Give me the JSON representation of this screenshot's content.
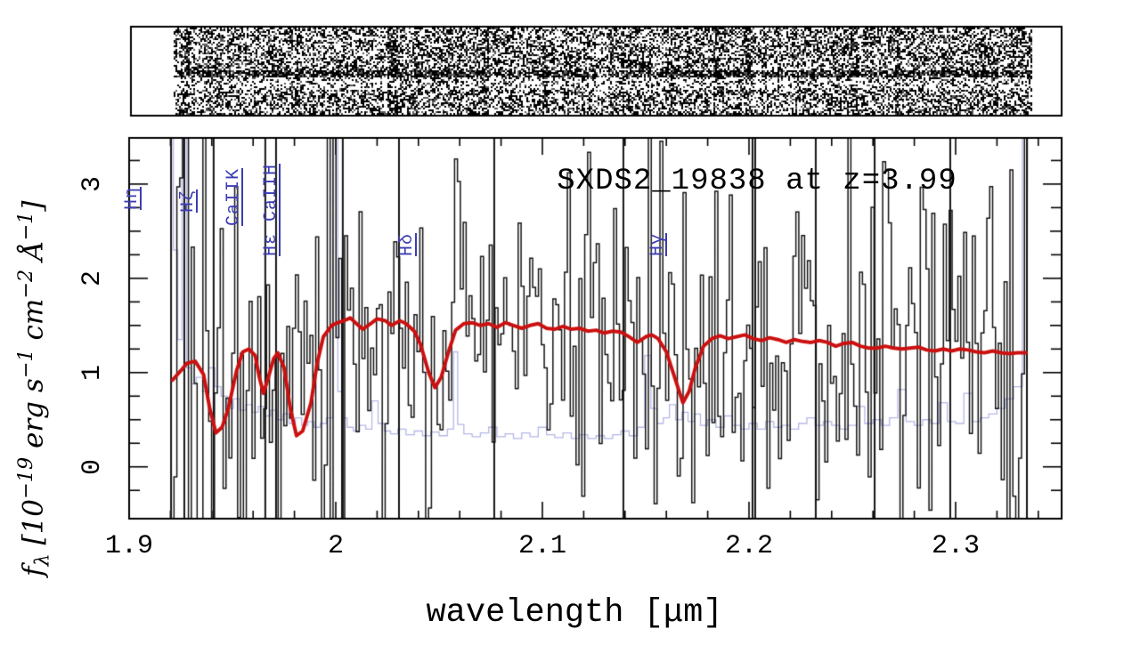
{
  "figure": {
    "title": "SXDS2_19838 at z=3.99",
    "object_name": "SXDS2_19838",
    "redshift": "3.99"
  },
  "colors": {
    "background": "#ffffff",
    "frame": "#000000",
    "observed_spectrum": "#141414",
    "model_curve": "#cc1010",
    "noise_spectrum": "#b4b8e8",
    "line_labels": "#3c3cb4"
  },
  "axes": {
    "xlabel": "wavelength [μm]",
    "ylabel": {
      "f": "f",
      "sub": "λ",
      "open": " [10",
      "e1": "−19",
      "erg": " erg s",
      "e2": "−1",
      "cm": " cm",
      "e3": "−2",
      "ang": " Å",
      "e4": "−1",
      "close": "]"
    },
    "x_tick_labels": [
      "1.9",
      "2",
      "2.1",
      "2.2",
      "2.3"
    ],
    "y_tick_labels": [
      "0",
      "1",
      "2",
      "3"
    ]
  },
  "strip": {
    "name": "2d-spectrum-cutout",
    "has_dark_trace_band": true
  },
  "chart_data": {
    "type": "line",
    "title": "SXDS2_19838 at z=3.99",
    "xlabel": "wavelength [μm]",
    "ylabel": "f_lambda [10^-19 erg s^-1 cm^-2 A^-1]",
    "xlim": [
      1.9,
      2.3513
    ],
    "ylim": [
      -0.55,
      3.49
    ],
    "grid": false,
    "x_major_ticks": [
      1.9,
      2.0,
      2.1,
      2.2,
      2.3
    ],
    "x_minor_step": 0.02,
    "y_major_ticks": [
      0,
      1,
      2,
      3
    ],
    "y_minor_step": 0.25,
    "data_range_um": [
      1.9203,
      2.3345
    ],
    "spectral_lines": [
      {
        "label": "Hη",
        "wavelength_um": 1.914
      },
      {
        "label": "Hζ",
        "wavelength_um": 1.941
      },
      {
        "label": "CaIIK",
        "wavelength_um": 1.963
      },
      {
        "label": "Hε CaIIH",
        "wavelength_um": 1.981
      },
      {
        "label": "Hδ",
        "wavelength_um": 2.047
      },
      {
        "label": "Hγ",
        "wavelength_um": 2.168
      }
    ],
    "bad_pixel_columns_um": [
      1.9203,
      1.9267,
      1.9409,
      1.9659,
      1.9711,
      2.0034,
      2.0306,
      2.0767,
      2.1392,
      2.2017,
      2.203,
      2.2323,
      2.2608,
      2.2974,
      2.3345
    ],
    "series": [
      {
        "name": "observed spectrum",
        "style": "histogram",
        "color": "#141414",
        "generated": {
          "seed": 20,
          "bin_um": 0.0014,
          "sigma_base": 0.42,
          "sigma_noise_scale": 1.05,
          "left_edge_boost": 1.6,
          "left_edge_limit_um": 1.945
        }
      },
      {
        "name": "best-fit model",
        "style": "smooth-line",
        "color": "#cc1010",
        "points": [
          [
            1.921,
            0.92
          ],
          [
            1.925,
            1.02
          ],
          [
            1.928,
            1.1
          ],
          [
            1.932,
            1.12
          ],
          [
            1.936,
            0.98
          ],
          [
            1.939,
            0.62
          ],
          [
            1.942,
            0.36
          ],
          [
            1.945,
            0.42
          ],
          [
            1.948,
            0.62
          ],
          [
            1.952,
            1.02
          ],
          [
            1.955,
            1.22
          ],
          [
            1.958,
            1.25
          ],
          [
            1.961,
            1.18
          ],
          [
            1.963,
            0.95
          ],
          [
            1.965,
            0.78
          ],
          [
            1.967,
            0.92
          ],
          [
            1.97,
            1.15
          ],
          [
            1.972,
            1.21
          ],
          [
            1.975,
            1.05
          ],
          [
            1.978,
            0.62
          ],
          [
            1.981,
            0.33
          ],
          [
            1.984,
            0.38
          ],
          [
            1.988,
            0.68
          ],
          [
            1.991,
            1.1
          ],
          [
            1.994,
            1.38
          ],
          [
            1.998,
            1.5
          ],
          [
            2.001,
            1.53
          ],
          [
            2.004,
            1.55
          ],
          [
            2.007,
            1.58
          ],
          [
            2.01,
            1.52
          ],
          [
            2.013,
            1.46
          ],
          [
            2.017,
            1.52
          ],
          [
            2.02,
            1.57
          ],
          [
            2.024,
            1.55
          ],
          [
            2.027,
            1.5
          ],
          [
            2.031,
            1.55
          ],
          [
            2.034,
            1.52
          ],
          [
            2.038,
            1.44
          ],
          [
            2.041,
            1.3
          ],
          [
            2.045,
            1.0
          ],
          [
            2.048,
            0.84
          ],
          [
            2.051,
            0.95
          ],
          [
            2.055,
            1.25
          ],
          [
            2.058,
            1.45
          ],
          [
            2.062,
            1.52
          ],
          [
            2.066,
            1.53
          ],
          [
            2.07,
            1.5
          ],
          [
            2.074,
            1.52
          ],
          [
            2.078,
            1.48
          ],
          [
            2.082,
            1.53
          ],
          [
            2.086,
            1.5
          ],
          [
            2.09,
            1.47
          ],
          [
            2.094,
            1.5
          ],
          [
            2.098,
            1.52
          ],
          [
            2.102,
            1.47
          ],
          [
            2.106,
            1.46
          ],
          [
            2.11,
            1.49
          ],
          [
            2.114,
            1.46
          ],
          [
            2.118,
            1.47
          ],
          [
            2.122,
            1.44
          ],
          [
            2.126,
            1.45
          ],
          [
            2.13,
            1.42
          ],
          [
            2.134,
            1.44
          ],
          [
            2.138,
            1.43
          ],
          [
            2.142,
            1.38
          ],
          [
            2.146,
            1.32
          ],
          [
            2.15,
            1.38
          ],
          [
            2.153,
            1.4
          ],
          [
            2.156,
            1.36
          ],
          [
            2.16,
            1.22
          ],
          [
            2.164,
            0.95
          ],
          [
            2.168,
            0.68
          ],
          [
            2.171,
            0.8
          ],
          [
            2.174,
            1.05
          ],
          [
            2.178,
            1.28
          ],
          [
            2.182,
            1.36
          ],
          [
            2.186,
            1.39
          ],
          [
            2.19,
            1.36
          ],
          [
            2.194,
            1.38
          ],
          [
            2.198,
            1.4
          ],
          [
            2.202,
            1.36
          ],
          [
            2.206,
            1.34
          ],
          [
            2.21,
            1.37
          ],
          [
            2.214,
            1.35
          ],
          [
            2.218,
            1.32
          ],
          [
            2.222,
            1.35
          ],
          [
            2.226,
            1.33
          ],
          [
            2.23,
            1.32
          ],
          [
            2.234,
            1.34
          ],
          [
            2.238,
            1.32
          ],
          [
            2.242,
            1.28
          ],
          [
            2.246,
            1.31
          ],
          [
            2.25,
            1.32
          ],
          [
            2.254,
            1.28
          ],
          [
            2.258,
            1.26
          ],
          [
            2.262,
            1.26
          ],
          [
            2.266,
            1.28
          ],
          [
            2.27,
            1.26
          ],
          [
            2.274,
            1.25
          ],
          [
            2.278,
            1.26
          ],
          [
            2.282,
            1.27
          ],
          [
            2.286,
            1.24
          ],
          [
            2.29,
            1.23
          ],
          [
            2.294,
            1.25
          ],
          [
            2.298,
            1.23
          ],
          [
            2.302,
            1.25
          ],
          [
            2.306,
            1.24
          ],
          [
            2.31,
            1.22
          ],
          [
            2.314,
            1.21
          ],
          [
            2.318,
            1.23
          ],
          [
            2.322,
            1.21
          ],
          [
            2.326,
            1.2
          ],
          [
            2.33,
            1.21
          ],
          [
            2.334,
            1.21
          ]
        ]
      },
      {
        "name": "noise spectrum",
        "style": "histogram",
        "color": "#b4b8e8",
        "points": [
          [
            1.9203,
            3.6
          ],
          [
            1.9225,
            2.3
          ],
          [
            1.9245,
            1.35
          ],
          [
            1.9267,
            3.6
          ],
          [
            1.929,
            1.05
          ],
          [
            1.931,
            0.88
          ],
          [
            1.934,
            0.95
          ],
          [
            1.937,
            0.8
          ],
          [
            1.94,
            1.05
          ],
          [
            1.943,
            0.85
          ],
          [
            1.946,
            0.75
          ],
          [
            1.949,
            0.62
          ],
          [
            1.952,
            0.72
          ],
          [
            1.955,
            0.6
          ],
          [
            1.958,
            0.66
          ],
          [
            1.961,
            0.58
          ],
          [
            1.964,
            0.64
          ],
          [
            1.967,
            0.54
          ],
          [
            1.97,
            0.6
          ],
          [
            1.973,
            0.5
          ],
          [
            1.976,
            0.56
          ],
          [
            1.979,
            0.46
          ],
          [
            1.982,
            0.52
          ],
          [
            1.985,
            0.44
          ],
          [
            1.988,
            0.48
          ],
          [
            1.991,
            0.42
          ],
          [
            1.994,
            0.46
          ],
          [
            1.997,
            0.52
          ],
          [
            2.0,
            3.6
          ],
          [
            2.002,
            0.8
          ],
          [
            2.004,
            0.52
          ],
          [
            2.007,
            0.42
          ],
          [
            2.01,
            0.38
          ],
          [
            2.013,
            0.44
          ],
          [
            2.016,
            0.4
          ],
          [
            2.019,
            0.7
          ],
          [
            2.022,
            0.46
          ],
          [
            2.025,
            0.38
          ],
          [
            2.028,
            0.35
          ],
          [
            2.032,
            0.4
          ],
          [
            2.036,
            0.34
          ],
          [
            2.04,
            0.38
          ],
          [
            2.044,
            0.33
          ],
          [
            2.048,
            0.37
          ],
          [
            2.052,
            0.33
          ],
          [
            2.056,
            0.4
          ],
          [
            2.058,
            1.22
          ],
          [
            2.06,
            0.45
          ],
          [
            2.064,
            0.35
          ],
          [
            2.068,
            0.32
          ],
          [
            2.072,
            0.36
          ],
          [
            2.076,
            0.42
          ],
          [
            2.08,
            0.32
          ],
          [
            2.084,
            0.35
          ],
          [
            2.088,
            0.3
          ],
          [
            2.092,
            0.36
          ],
          [
            2.096,
            0.32
          ],
          [
            2.1,
            0.42
          ],
          [
            2.104,
            0.34
          ],
          [
            2.108,
            0.31
          ],
          [
            2.112,
            0.36
          ],
          [
            2.116,
            0.3
          ],
          [
            2.12,
            0.34
          ],
          [
            2.124,
            0.3
          ],
          [
            2.128,
            0.33
          ],
          [
            2.132,
            0.3
          ],
          [
            2.136,
            0.34
          ],
          [
            2.14,
            0.38
          ],
          [
            2.144,
            0.33
          ],
          [
            2.148,
            0.42
          ],
          [
            2.151,
            1.18
          ],
          [
            2.154,
            0.62
          ],
          [
            2.157,
            0.46
          ],
          [
            2.16,
            0.52
          ],
          [
            2.163,
            0.66
          ],
          [
            2.166,
            0.5
          ],
          [
            2.169,
            0.58
          ],
          [
            2.172,
            0.48
          ],
          [
            2.175,
            0.56
          ],
          [
            2.178,
            0.44
          ],
          [
            2.182,
            0.5
          ],
          [
            2.186,
            0.42
          ],
          [
            2.19,
            0.54
          ],
          [
            2.194,
            0.44
          ],
          [
            2.198,
            0.4
          ],
          [
            2.202,
            0.46
          ],
          [
            2.206,
            0.4
          ],
          [
            2.21,
            0.48
          ],
          [
            2.214,
            0.42
          ],
          [
            2.218,
            0.44
          ],
          [
            2.222,
            0.4
          ],
          [
            2.226,
            0.46
          ],
          [
            2.23,
            0.52
          ],
          [
            2.234,
            0.44
          ],
          [
            2.238,
            0.48
          ],
          [
            2.242,
            0.44
          ],
          [
            2.246,
            0.4
          ],
          [
            2.25,
            0.44
          ],
          [
            2.254,
            0.64
          ],
          [
            2.258,
            0.46
          ],
          [
            2.262,
            0.5
          ],
          [
            2.266,
            0.44
          ],
          [
            2.27,
            0.52
          ],
          [
            2.274,
            0.82
          ],
          [
            2.278,
            0.48
          ],
          [
            2.282,
            0.44
          ],
          [
            2.286,
            0.5
          ],
          [
            2.29,
            0.46
          ],
          [
            2.294,
            0.68
          ],
          [
            2.298,
            0.48
          ],
          [
            2.302,
            0.46
          ],
          [
            2.306,
            0.78
          ],
          [
            2.31,
            0.48
          ],
          [
            2.314,
            0.52
          ],
          [
            2.318,
            0.56
          ],
          [
            2.322,
            0.62
          ],
          [
            2.326,
            0.72
          ],
          [
            2.33,
            0.85
          ],
          [
            2.3345,
            3.6
          ]
        ]
      }
    ]
  }
}
